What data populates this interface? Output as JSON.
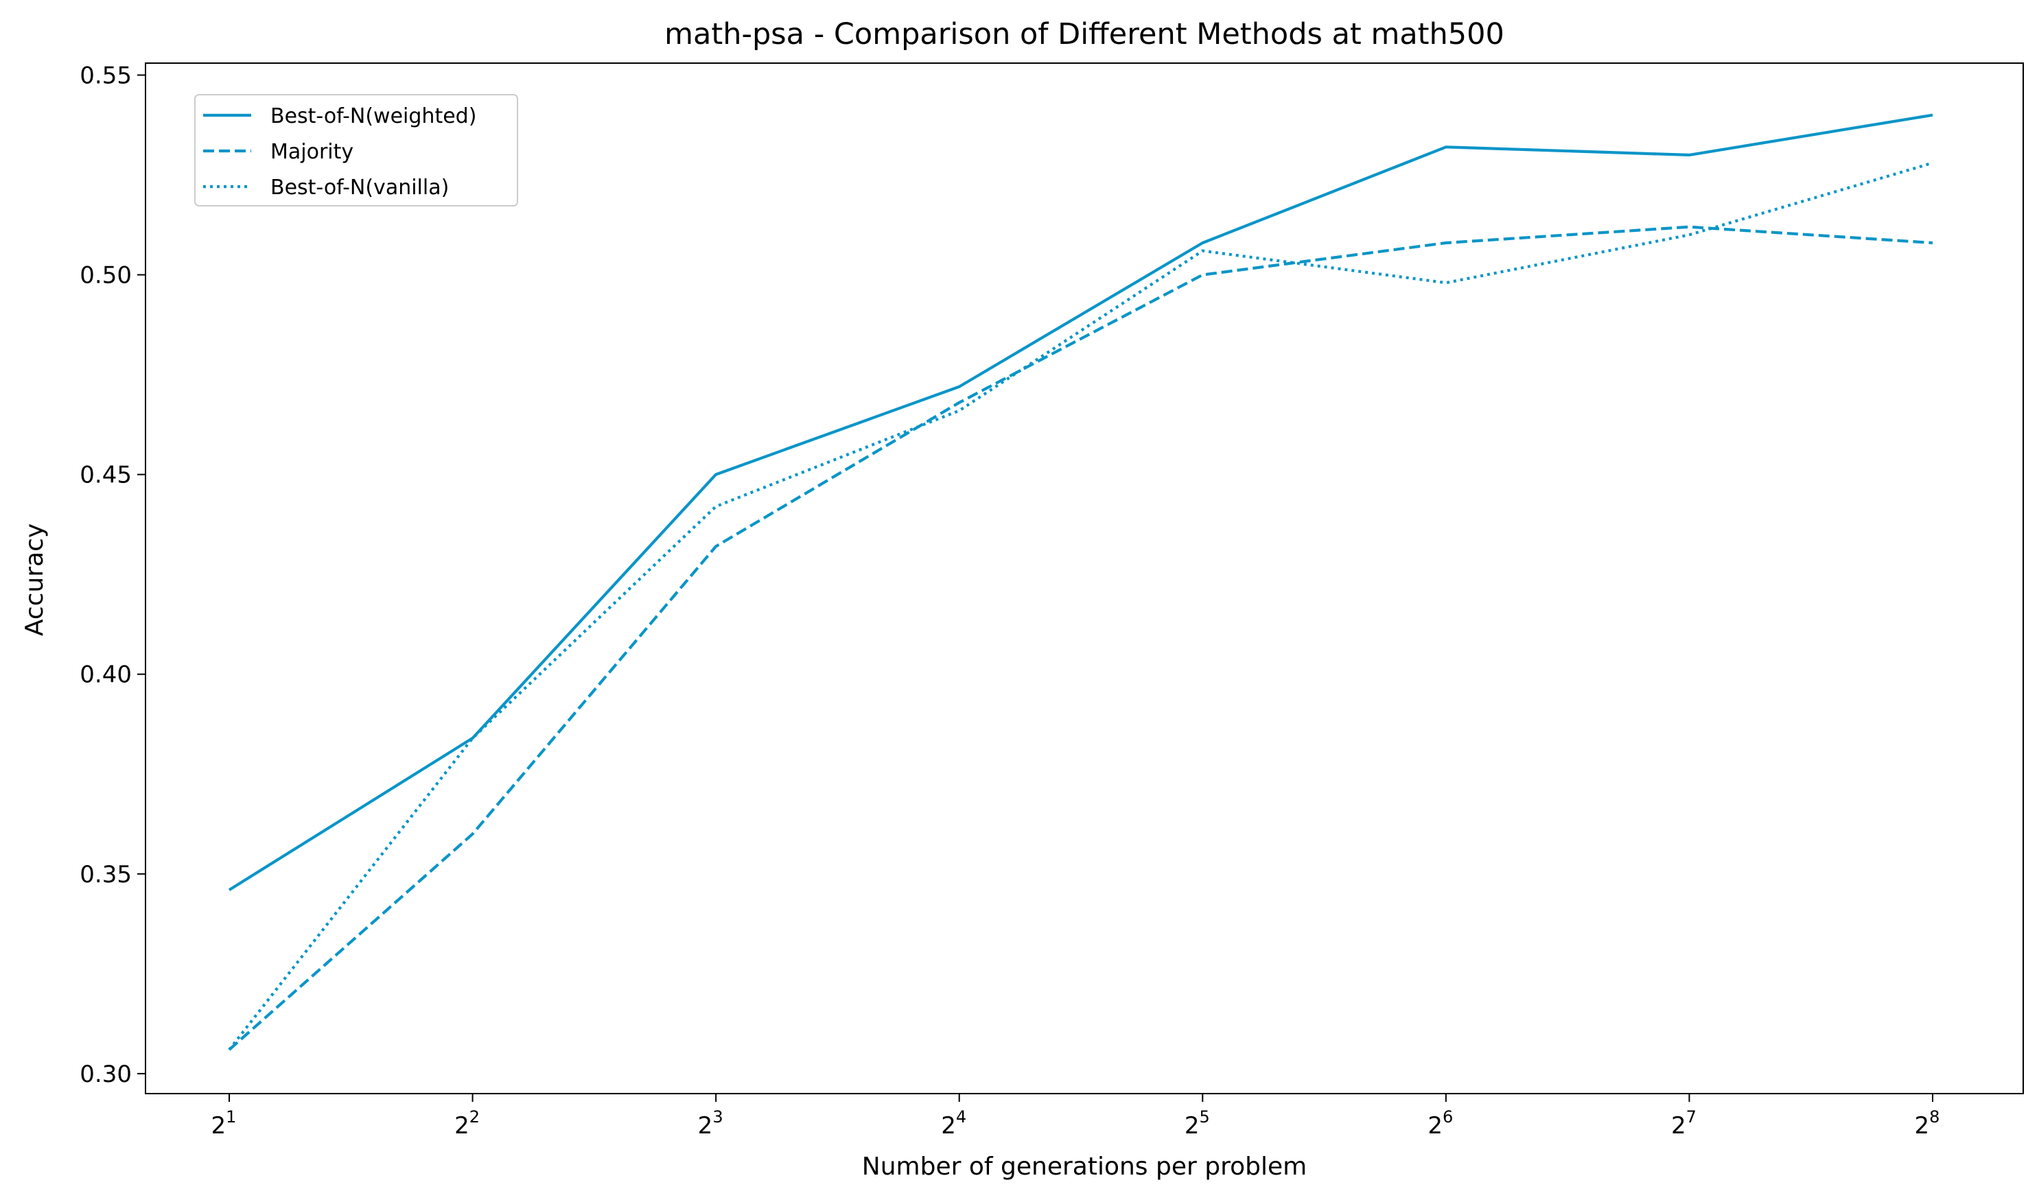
{
  "chart_data": {
    "type": "line",
    "title": "math-psa - Comparison of Different Methods at math500",
    "xlabel": "Number of generations per problem",
    "ylabel": "Accuracy",
    "x_scale": "log2",
    "x": [
      2,
      4,
      8,
      16,
      32,
      64,
      128,
      256
    ],
    "x_tick_labels": [
      {
        "base": "2",
        "exp": "1"
      },
      {
        "base": "2",
        "exp": "2"
      },
      {
        "base": "2",
        "exp": "3"
      },
      {
        "base": "2",
        "exp": "4"
      },
      {
        "base": "2",
        "exp": "5"
      },
      {
        "base": "2",
        "exp": "6"
      },
      {
        "base": "2",
        "exp": "7"
      },
      {
        "base": "2",
        "exp": "8"
      }
    ],
    "ylim": [
      0.295,
      0.553
    ],
    "y_ticks": [
      "0.30",
      "0.35",
      "0.40",
      "0.45",
      "0.50",
      "0.55"
    ],
    "grid": false,
    "legend_position": "top-left",
    "color": "#0a95c8",
    "series": [
      {
        "name": "Best-of-N(weighted)",
        "style": "solid",
        "values": [
          0.346,
          0.384,
          0.45,
          0.472,
          0.508,
          0.532,
          0.53,
          0.54
        ]
      },
      {
        "name": "Majority",
        "style": "dashed",
        "values": [
          0.306,
          0.36,
          0.432,
          0.468,
          0.5,
          0.508,
          0.512,
          0.508
        ]
      },
      {
        "name": "Best-of-N(vanilla)",
        "style": "dotted",
        "values": [
          0.306,
          0.384,
          0.442,
          0.466,
          0.506,
          0.498,
          0.51,
          0.528
        ]
      }
    ]
  }
}
